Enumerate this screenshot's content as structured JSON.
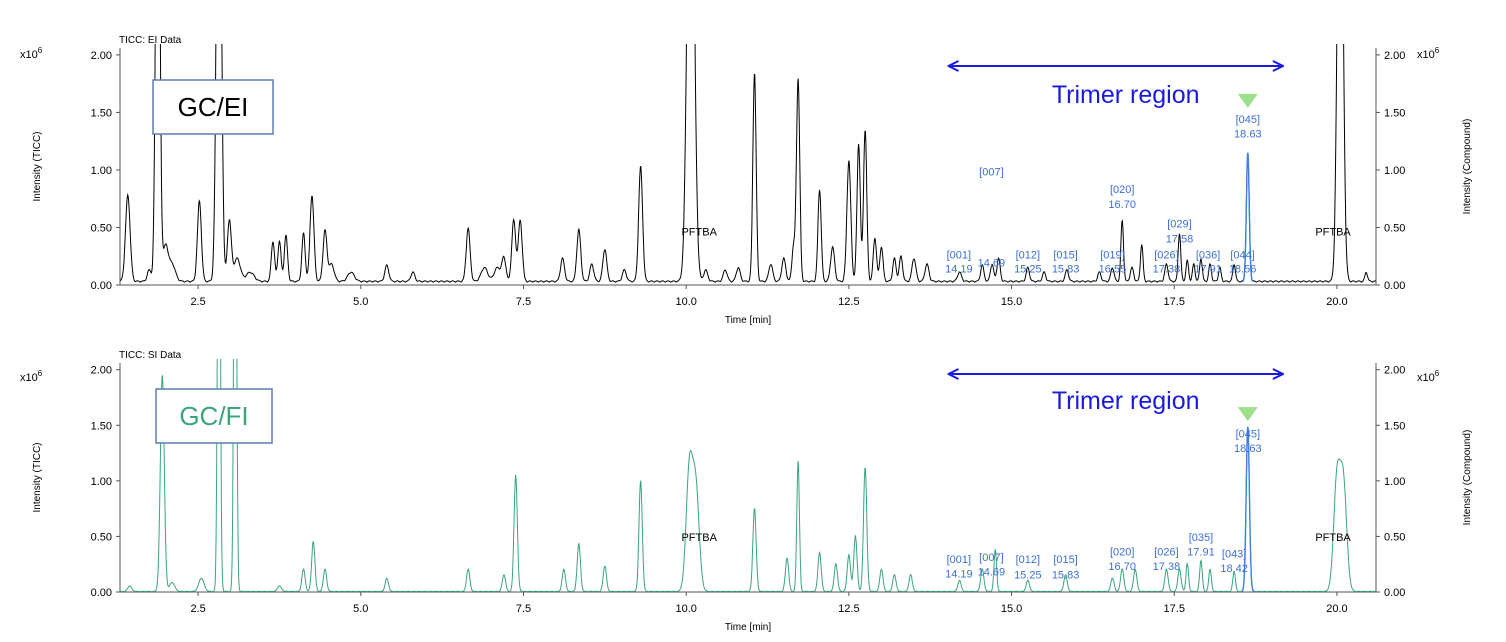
{
  "chart_data": [
    {
      "type": "line",
      "panel_title": "TICC: EI Data",
      "badge": "GC/EI",
      "region_label": "Trimer region",
      "region_range": [
        14.0,
        19.2
      ],
      "multiplier": "x10",
      "multiplier_exp": "6",
      "ylabel_left": "Intensity (TICC)",
      "ylabel_right": "Intensity (Compound)",
      "xlabel": "Time [min]",
      "xlim": [
        1.3,
        20.6
      ],
      "ylim": [
        0,
        2.06
      ],
      "xticks": [
        2.5,
        5.0,
        7.5,
        10.0,
        12.5,
        15.0,
        17.5,
        20.0
      ],
      "xtick_labels": [
        "2.5",
        "5.0",
        "7.5",
        "10.0",
        "12.5",
        "15.0",
        "17.5",
        "20.0"
      ],
      "yticks": [
        0,
        0.5,
        1.0,
        1.5,
        2.0
      ],
      "ytick_labels": [
        "0.00",
        "0.50",
        "1.00",
        "1.50",
        "2.00"
      ],
      "line_color": "#000000",
      "baseline": 0.03,
      "peaks": [
        [
          1.42,
          0.75,
          0.035
        ],
        [
          1.75,
          0.1,
          0.03
        ],
        [
          1.88,
          5.0,
          0.03
        ],
        [
          2.0,
          0.3,
          0.04
        ],
        [
          2.1,
          0.15,
          0.05
        ],
        [
          2.52,
          0.7,
          0.03
        ],
        [
          2.82,
          5.0,
          0.035
        ],
        [
          2.98,
          0.53,
          0.03
        ],
        [
          3.1,
          0.2,
          0.05
        ],
        [
          3.3,
          0.08,
          0.06
        ],
        [
          3.65,
          0.35,
          0.025
        ],
        [
          3.75,
          0.35,
          0.025
        ],
        [
          3.85,
          0.4,
          0.025
        ],
        [
          4.12,
          0.42,
          0.025
        ],
        [
          4.25,
          0.75,
          0.03
        ],
        [
          4.45,
          0.44,
          0.03
        ],
        [
          4.55,
          0.15,
          0.04
        ],
        [
          4.85,
          0.08,
          0.05
        ],
        [
          5.4,
          0.14,
          0.03
        ],
        [
          5.8,
          0.08,
          0.03
        ],
        [
          6.65,
          0.46,
          0.03
        ],
        [
          6.9,
          0.12,
          0.05
        ],
        [
          7.1,
          0.12,
          0.05
        ],
        [
          7.2,
          0.2,
          0.03
        ],
        [
          7.35,
          0.53,
          0.03
        ],
        [
          7.45,
          0.53,
          0.03
        ],
        [
          8.1,
          0.2,
          0.03
        ],
        [
          8.35,
          0.45,
          0.03
        ],
        [
          8.55,
          0.15,
          0.03
        ],
        [
          8.75,
          0.28,
          0.03
        ],
        [
          9.05,
          0.1,
          0.03
        ],
        [
          9.3,
          1.0,
          0.03
        ],
        [
          10.07,
          5.0,
          0.05
        ],
        [
          10.3,
          0.1,
          0.03
        ],
        [
          10.6,
          0.1,
          0.03
        ],
        [
          10.8,
          0.12,
          0.03
        ],
        [
          11.05,
          1.82,
          0.025
        ],
        [
          11.3,
          0.15,
          0.03
        ],
        [
          11.5,
          0.2,
          0.03
        ],
        [
          11.65,
          0.3,
          0.025
        ],
        [
          11.72,
          1.77,
          0.025
        ],
        [
          12.05,
          0.8,
          0.025
        ],
        [
          12.25,
          0.3,
          0.03
        ],
        [
          12.5,
          1.05,
          0.03
        ],
        [
          12.65,
          1.2,
          0.025
        ],
        [
          12.75,
          1.32,
          0.025
        ],
        [
          12.9,
          0.38,
          0.025
        ],
        [
          13.0,
          0.3,
          0.025
        ],
        [
          13.2,
          0.2,
          0.025
        ],
        [
          13.3,
          0.22,
          0.025
        ],
        [
          13.5,
          0.2,
          0.03
        ],
        [
          13.7,
          0.15,
          0.03
        ],
        [
          14.2,
          0.08,
          0.03
        ],
        [
          14.55,
          0.14,
          0.025
        ],
        [
          14.7,
          0.15,
          0.025
        ],
        [
          14.8,
          0.2,
          0.025
        ],
        [
          15.25,
          0.12,
          0.025
        ],
        [
          15.5,
          0.08,
          0.025
        ],
        [
          15.85,
          0.1,
          0.025
        ],
        [
          16.35,
          0.08,
          0.025
        ],
        [
          16.55,
          0.12,
          0.025
        ],
        [
          16.7,
          0.53,
          0.02
        ],
        [
          16.85,
          0.12,
          0.025
        ],
        [
          17.0,
          0.32,
          0.02
        ],
        [
          17.38,
          0.15,
          0.025
        ],
        [
          17.58,
          0.42,
          0.02
        ],
        [
          17.7,
          0.18,
          0.02
        ],
        [
          17.8,
          0.15,
          0.02
        ],
        [
          17.91,
          0.2,
          0.02
        ],
        [
          18.05,
          0.15,
          0.02
        ],
        [
          18.2,
          0.12,
          0.02
        ],
        [
          18.42,
          0.15,
          0.02
        ],
        [
          18.63,
          1.12,
          0.022
        ],
        [
          20.05,
          5.0,
          0.04
        ],
        [
          20.45,
          0.08,
          0.02
        ]
      ],
      "marker": {
        "x": 18.63,
        "y": 1.6
      },
      "annotations": [
        {
          "text": "PFTBA",
          "x": 10.2,
          "y": 0.43,
          "color": "#000000"
        },
        {
          "text": "PFTBA",
          "x": 19.94,
          "y": 0.43,
          "color": "#000000"
        },
        {
          "text": "[001]",
          "x": 14.19,
          "y": 0.23,
          "color": "#3b6fd6"
        },
        {
          "text": "14.19",
          "x": 14.19,
          "y": 0.11,
          "color": "#3b6fd6"
        },
        {
          "text": "[007]",
          "x": 14.69,
          "y": 0.95,
          "color": "#3b6fd6"
        },
        {
          "text": "14.69",
          "x": 14.69,
          "y": 0.16,
          "color": "#3b6fd6"
        },
        {
          "text": "[012]",
          "x": 15.25,
          "y": 0.23,
          "color": "#3b6fd6"
        },
        {
          "text": "15.25",
          "x": 15.25,
          "y": 0.11,
          "color": "#3b6fd6"
        },
        {
          "text": "[015]",
          "x": 15.83,
          "y": 0.23,
          "color": "#3b6fd6"
        },
        {
          "text": "15.83",
          "x": 15.83,
          "y": 0.11,
          "color": "#3b6fd6"
        },
        {
          "text": "[019]",
          "x": 16.55,
          "y": 0.23,
          "color": "#3b6fd6"
        },
        {
          "text": "16.55",
          "x": 16.55,
          "y": 0.11,
          "color": "#3b6fd6"
        },
        {
          "text": "[020]",
          "x": 16.7,
          "y": 0.8,
          "color": "#3b6fd6"
        },
        {
          "text": "16.70",
          "x": 16.7,
          "y": 0.67,
          "color": "#3b6fd6"
        },
        {
          "text": "[026]",
          "x": 17.38,
          "y": 0.23,
          "color": "#3b6fd6"
        },
        {
          "text": "17.38",
          "x": 17.38,
          "y": 0.11,
          "color": "#3b6fd6"
        },
        {
          "text": "[029]",
          "x": 17.58,
          "y": 0.5,
          "color": "#3b6fd6"
        },
        {
          "text": "17.58",
          "x": 17.58,
          "y": 0.37,
          "color": "#3b6fd6"
        },
        {
          "text": "[036]",
          "x": 18.02,
          "y": 0.23,
          "color": "#3b6fd6"
        },
        {
          "text": "17.91",
          "x": 18.02,
          "y": 0.11,
          "color": "#3b6fd6"
        },
        {
          "text": "[044]",
          "x": 18.55,
          "y": 0.23,
          "color": "#3b6fd6"
        },
        {
          "text": "18.56",
          "x": 18.55,
          "y": 0.11,
          "color": "#3b6fd6"
        },
        {
          "text": "[045]",
          "x": 18.63,
          "y": 1.41,
          "color": "#3b6fd6"
        },
        {
          "text": "18.63",
          "x": 18.63,
          "y": 1.28,
          "color": "#3b6fd6"
        }
      ]
    },
    {
      "type": "line",
      "panel_title": "TICC: SI Data",
      "badge": "GC/FI",
      "region_label": "Trimer region",
      "region_range": [
        14.0,
        19.2
      ],
      "multiplier": "x10",
      "multiplier_exp": "6",
      "ylabel_left": "Intensity (TICC)",
      "ylabel_right": "Intensity (Compound)",
      "xlabel": "Time [min]",
      "xlim": [
        1.3,
        20.6
      ],
      "ylim": [
        0,
        2.06
      ],
      "xticks": [
        2.5,
        5.0,
        7.5,
        10.0,
        12.5,
        15.0,
        17.5,
        20.0
      ],
      "xtick_labels": [
        "2.5",
        "5.0",
        "7.5",
        "10.0",
        "12.5",
        "15.0",
        "17.5",
        "20.0"
      ],
      "yticks": [
        0,
        0.5,
        1.0,
        1.5,
        2.0
      ],
      "ytick_labels": [
        "0.00",
        "0.50",
        "1.00",
        "1.50",
        "2.00"
      ],
      "line_color": "#3aa57a",
      "baseline": 0.005,
      "peaks": [
        [
          1.45,
          0.05,
          0.03
        ],
        [
          1.95,
          1.95,
          0.03
        ],
        [
          2.1,
          0.08,
          0.04
        ],
        [
          2.55,
          0.12,
          0.04
        ],
        [
          2.82,
          5.0,
          0.02
        ],
        [
          3.07,
          5.0,
          0.02
        ],
        [
          3.75,
          0.05,
          0.03
        ],
        [
          4.12,
          0.2,
          0.025
        ],
        [
          4.27,
          0.45,
          0.025
        ],
        [
          4.45,
          0.2,
          0.025
        ],
        [
          5.4,
          0.12,
          0.025
        ],
        [
          6.65,
          0.2,
          0.025
        ],
        [
          7.2,
          0.15,
          0.025
        ],
        [
          7.38,
          1.05,
          0.025
        ],
        [
          8.12,
          0.2,
          0.025
        ],
        [
          8.35,
          0.43,
          0.025
        ],
        [
          8.75,
          0.23,
          0.025
        ],
        [
          9.3,
          1.0,
          0.025
        ],
        [
          10.05,
          1.1,
          0.05
        ],
        [
          10.15,
          0.9,
          0.05
        ],
        [
          11.05,
          0.75,
          0.025
        ],
        [
          11.55,
          0.3,
          0.025
        ],
        [
          11.72,
          1.18,
          0.02
        ],
        [
          12.05,
          0.35,
          0.025
        ],
        [
          12.3,
          0.25,
          0.025
        ],
        [
          12.5,
          0.33,
          0.025
        ],
        [
          12.6,
          0.5,
          0.025
        ],
        [
          12.75,
          1.12,
          0.025
        ],
        [
          13.0,
          0.2,
          0.025
        ],
        [
          13.2,
          0.15,
          0.025
        ],
        [
          13.45,
          0.15,
          0.025
        ],
        [
          14.2,
          0.1,
          0.025
        ],
        [
          14.55,
          0.2,
          0.025
        ],
        [
          14.75,
          0.38,
          0.02
        ],
        [
          15.25,
          0.1,
          0.025
        ],
        [
          15.83,
          0.15,
          0.025
        ],
        [
          16.55,
          0.12,
          0.025
        ],
        [
          16.7,
          0.2,
          0.025
        ],
        [
          16.9,
          0.2,
          0.025
        ],
        [
          17.38,
          0.2,
          0.025
        ],
        [
          17.58,
          0.2,
          0.025
        ],
        [
          17.7,
          0.25,
          0.02
        ],
        [
          17.91,
          0.28,
          0.02
        ],
        [
          18.05,
          0.2,
          0.02
        ],
        [
          18.42,
          0.18,
          0.02
        ],
        [
          18.63,
          1.48,
          0.025
        ],
        [
          20.0,
          1.0,
          0.05
        ],
        [
          20.1,
          0.95,
          0.05
        ]
      ],
      "marker": {
        "x": 18.63,
        "y": 1.6
      },
      "annotations": [
        {
          "text": "PFTBA",
          "x": 10.2,
          "y": 0.46,
          "color": "#000000"
        },
        {
          "text": "PFTBA",
          "x": 19.94,
          "y": 0.46,
          "color": "#000000"
        },
        {
          "text": "[001]",
          "x": 14.19,
          "y": 0.26,
          "color": "#3b6fd6"
        },
        {
          "text": "14.19",
          "x": 14.19,
          "y": 0.13,
          "color": "#3b6fd6"
        },
        {
          "text": "[007]",
          "x": 14.69,
          "y": 0.28,
          "color": "#3b6fd6"
        },
        {
          "text": "14.69",
          "x": 14.69,
          "y": 0.15,
          "color": "#3b6fd6"
        },
        {
          "text": "[012]",
          "x": 15.25,
          "y": 0.26,
          "color": "#3b6fd6"
        },
        {
          "text": "15.25",
          "x": 15.25,
          "y": 0.12,
          "color": "#3b6fd6"
        },
        {
          "text": "[015]",
          "x": 15.83,
          "y": 0.26,
          "color": "#3b6fd6"
        },
        {
          "text": "15.83",
          "x": 15.83,
          "y": 0.12,
          "color": "#3b6fd6"
        },
        {
          "text": "[020]",
          "x": 16.7,
          "y": 0.33,
          "color": "#3b6fd6"
        },
        {
          "text": "16.70",
          "x": 16.7,
          "y": 0.2,
          "color": "#3b6fd6"
        },
        {
          "text": "[026]",
          "x": 17.38,
          "y": 0.33,
          "color": "#3b6fd6"
        },
        {
          "text": "17.38",
          "x": 17.38,
          "y": 0.2,
          "color": "#3b6fd6"
        },
        {
          "text": "[035]",
          "x": 17.91,
          "y": 0.46,
          "color": "#3b6fd6"
        },
        {
          "text": "17.91",
          "x": 17.91,
          "y": 0.33,
          "color": "#3b6fd6"
        },
        {
          "text": "[043]",
          "x": 18.42,
          "y": 0.31,
          "color": "#3b6fd6"
        },
        {
          "text": "18.42",
          "x": 18.42,
          "y": 0.18,
          "color": "#3b6fd6"
        },
        {
          "text": "[045]",
          "x": 18.63,
          "y": 1.39,
          "color": "#3b6fd6"
        },
        {
          "text": "18.63",
          "x": 18.63,
          "y": 1.26,
          "color": "#3b6fd6"
        }
      ]
    }
  ],
  "colors": {
    "arrow": "#1a1ae0",
    "badge_border": "#5b7fb5",
    "badge_text_ei": "#000000",
    "badge_text_fi": "#3aa57a",
    "marker": "#9ce08c",
    "axis": "#555555",
    "compound_label": "#3b6fd6",
    "highlight": "#3f7fe0"
  }
}
